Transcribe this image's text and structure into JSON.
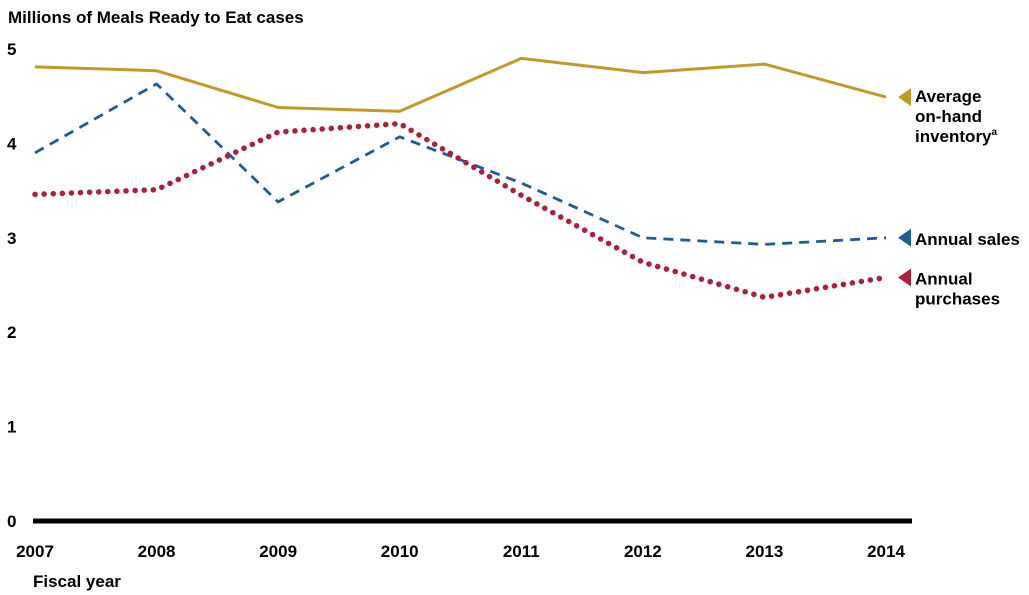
{
  "chart_data": {
    "type": "line",
    "title": "",
    "ylabel": "Millions of Meals Ready to Eat cases",
    "xlabel": "Fiscal year",
    "x": [
      "2007",
      "2008",
      "2009",
      "2010",
      "2011",
      "2012",
      "2013",
      "2014"
    ],
    "ylim": [
      0,
      5
    ],
    "yticks": [
      0,
      1,
      2,
      3,
      4,
      5
    ],
    "grid": false,
    "legend_placement": "right (inline labels at line ends)",
    "series": [
      {
        "name_lines": [
          "Average",
          "on-hand",
          "inventory"
        ],
        "footnote_marker": "a",
        "values": [
          4.81,
          4.77,
          4.38,
          4.34,
          4.9,
          4.75,
          4.84,
          4.49
        ],
        "color": "#C49A27",
        "style": "solid"
      },
      {
        "name_lines": [
          "Annual sales"
        ],
        "values": [
          3.9,
          4.63,
          3.38,
          4.07,
          3.58,
          3.0,
          2.93,
          3.0
        ],
        "color": "#1F5C99",
        "style": "dashed"
      },
      {
        "name_lines": [
          "Annual",
          "purchases"
        ],
        "values": [
          3.46,
          3.51,
          4.12,
          4.21,
          3.45,
          2.74,
          2.37,
          2.58
        ],
        "color": "#B01E3C",
        "style": "dotted"
      }
    ]
  }
}
